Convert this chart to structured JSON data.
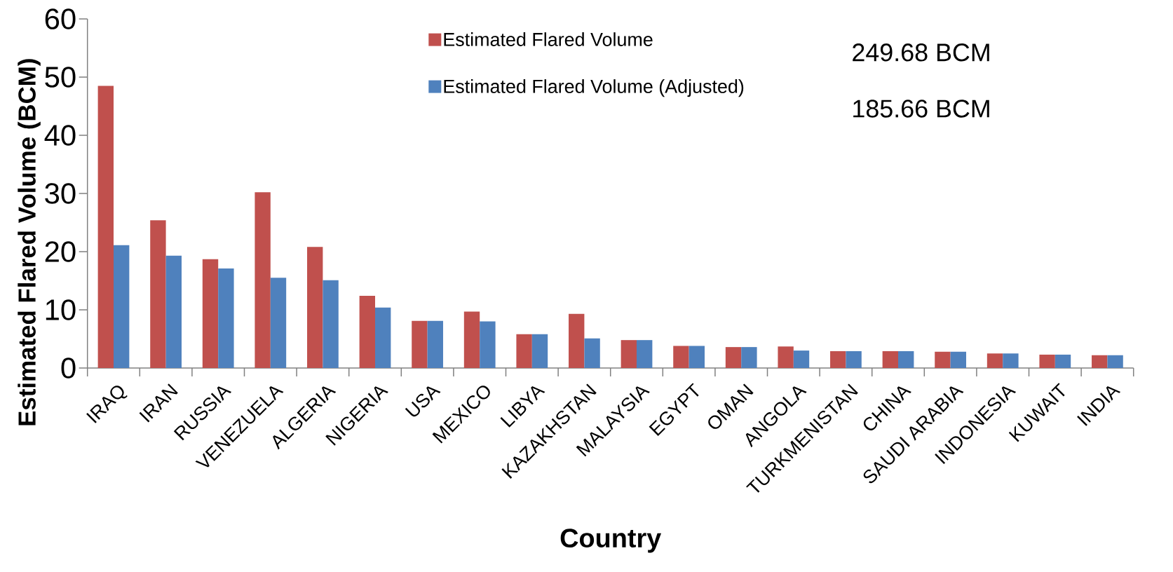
{
  "chart_data": {
    "type": "bar",
    "xlabel": "Country",
    "ylabel": "Estimated Flared Volume (BCM)",
    "categories": [
      "IRAQ",
      "IRAN",
      "RUSSIA",
      "VENEZUELA",
      "ALGERIA",
      "NIGERIA",
      "USA",
      "MEXICO",
      "LIBYA",
      "KAZAKHSTAN",
      "MALAYSIA",
      "EGYPT",
      "OMAN",
      "ANGOLA",
      "TURKMENISTAN",
      "CHINA",
      "SAUDI ARABIA",
      "INDONESIA",
      "KUWAIT",
      "INDIA"
    ],
    "series": [
      {
        "name": "Estimated Flared Volume",
        "color": "#c0504d",
        "values": [
          48.5,
          25.4,
          18.7,
          30.2,
          20.8,
          12.4,
          8.1,
          9.7,
          5.8,
          9.3,
          4.8,
          3.8,
          3.6,
          3.7,
          2.9,
          2.9,
          2.8,
          2.5,
          2.3,
          2.2
        ]
      },
      {
        "name": "Estimated Flared Volume (Adjusted)",
        "color": "#4f81bd",
        "values": [
          21.1,
          19.3,
          17.1,
          15.5,
          15.1,
          10.4,
          8.1,
          8.0,
          5.8,
          5.1,
          4.8,
          3.8,
          3.6,
          3.0,
          2.9,
          2.9,
          2.8,
          2.5,
          2.3,
          2.2
        ]
      }
    ],
    "ylim": [
      0,
      60
    ],
    "yticks": [
      0,
      10,
      20,
      30,
      40,
      50,
      60
    ],
    "grid": false,
    "legend": "top right",
    "annotations": [
      "249.68 BCM",
      "185.66 BCM"
    ]
  }
}
